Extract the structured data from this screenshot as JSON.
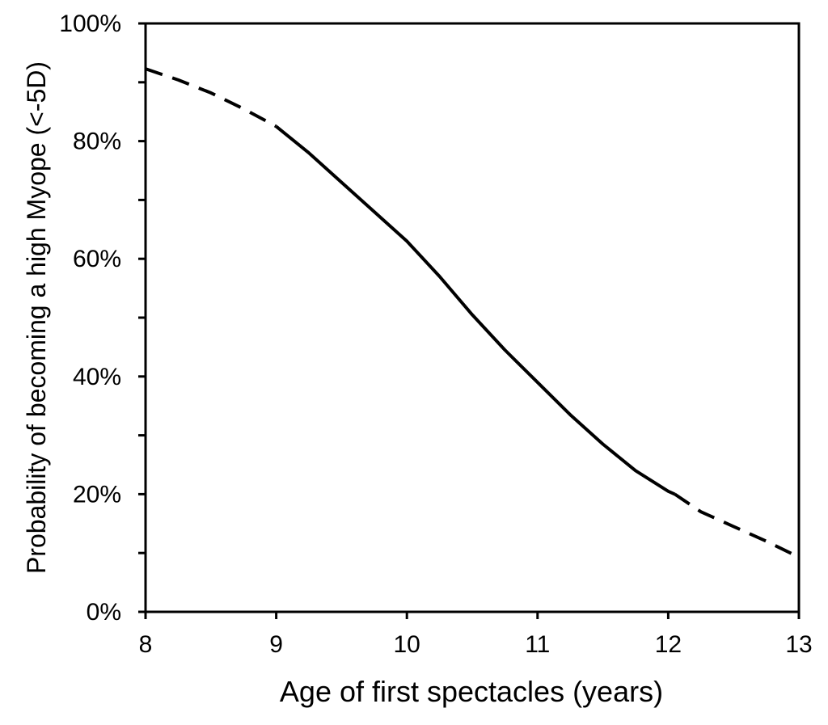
{
  "chart_data": {
    "type": "line",
    "title": "",
    "xlabel": "Age of first spectacles (years)",
    "ylabel": "Probability of becoming a high Myope (<-5D)",
    "xlim": [
      8,
      13
    ],
    "ylim": [
      0,
      100
    ],
    "x_ticks": [
      8,
      9,
      10,
      11,
      12,
      13
    ],
    "x_tick_labels": [
      "8",
      "9",
      "10",
      "11",
      "12",
      "13"
    ],
    "y_ticks": [
      0,
      20,
      40,
      60,
      80,
      100
    ],
    "y_tick_labels": [
      "0%",
      "20%",
      "40%",
      "60%",
      "80%",
      "100%"
    ],
    "y_minor_ticks": [
      10,
      30,
      50,
      70,
      90
    ],
    "grid": false,
    "legend": "none",
    "colors": {
      "line": "#000000",
      "axis": "#000000",
      "background": "#ffffff"
    },
    "series": [
      {
        "style": "dashed",
        "x": [
          8.0,
          8.25,
          8.5,
          8.75,
          9.0
        ],
        "y": [
          92.3,
          90.4,
          88.2,
          85.5,
          82.5
        ]
      },
      {
        "style": "solid",
        "x": [
          9.0,
          9.25,
          9.5,
          9.75,
          10.0,
          10.25,
          10.5,
          10.75,
          11.0,
          11.25,
          11.5,
          11.75,
          12.0,
          12.05
        ],
        "y": [
          82.5,
          78.0,
          73.0,
          68.0,
          63.0,
          57.0,
          50.5,
          44.5,
          39.0,
          33.5,
          28.5,
          24.0,
          20.5,
          20.0
        ]
      },
      {
        "style": "dashed",
        "x": [
          12.05,
          12.25,
          12.5,
          12.75,
          13.0
        ],
        "y": [
          20.0,
          17.0,
          14.5,
          12.0,
          9.3
        ]
      }
    ]
  }
}
